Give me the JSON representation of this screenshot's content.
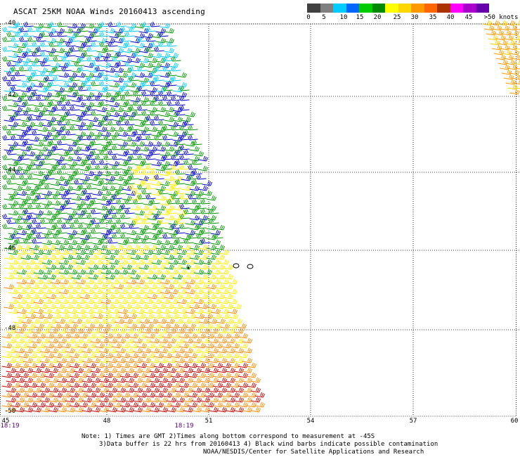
{
  "title": "ASCAT 25KM NOAA Winds 20160413 ascending",
  "legend": {
    "colors": [
      "#404040",
      "#808080",
      "#00ccff",
      "#0066ff",
      "#00cc00",
      "#008800",
      "#ffff00",
      "#ffd700",
      "#ff9900",
      "#ff6600",
      "#aa3300",
      "#ff00ff",
      "#aa00cc",
      "#6600aa"
    ],
    "labels": [
      "0",
      "5",
      "10",
      "15",
      "20",
      "25",
      "30",
      "35",
      "40",
      "45",
      ">50 knots"
    ]
  },
  "lat_labels": [
    "-40",
    "-42",
    "-44",
    "-46",
    "-48",
    "-50"
  ],
  "lon_labels": [
    "45",
    "48",
    "51",
    "54",
    "57",
    "60"
  ],
  "time_labels": [
    "18:19",
    "18:19"
  ],
  "notes": [
    "Note: 1) Times are GMT 2)Times along bottom correspond to measurement at -45S",
    "3)Data buffer is 22 hrs from 20160413 4) Black wind barbs indicate possible contamination",
    "NOAA/NESDIS/Center for Satellite Applications and Research"
  ],
  "colors": {
    "swath_blue": "#0000cc",
    "swath_cyan": "#00ccff",
    "swath_green": "#009900",
    "swath_yellow": "#ffee00",
    "swath_orange": "#ff8800",
    "swath_red": "#cc0000"
  }
}
